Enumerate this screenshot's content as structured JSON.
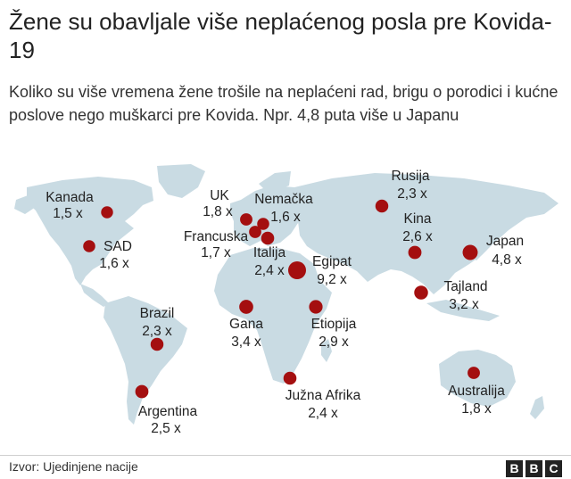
{
  "title": "Žene su obavljale više neplaćenog posla pre Kovida-19",
  "subtitle": "Koliko su više vremena žene trošile na neplaćeni rad, brigu o porodici i kućne poslove nego muškarci pre Kovida. Npr. 4,8 puta više u Japanu",
  "source": "Izvor: Ujedinjene nacije",
  "logo_letters": [
    "B",
    "B",
    "C"
  ],
  "colors": {
    "land": "#c9dbe3",
    "bubble": "#a40f10",
    "text": "#222222"
  },
  "chart_data": {
    "type": "bubble-map",
    "title": "Žene su obavljale više neplaćenog posla pre Kovida-19",
    "unit": "x",
    "points": [
      {
        "country": "Kanada",
        "value": 1.5,
        "label": "1,5 x"
      },
      {
        "country": "SAD",
        "value": 1.6,
        "label": "1,6 x"
      },
      {
        "country": "UK",
        "value": 1.8,
        "label": "1,8 x"
      },
      {
        "country": "Nemačka",
        "value": 1.6,
        "label": "1,6 x"
      },
      {
        "country": "Francuska",
        "value": 1.7,
        "label": "1,7 x"
      },
      {
        "country": "Italija",
        "value": 2.4,
        "label": "2,4 x"
      },
      {
        "country": "Egipat",
        "value": 9.2,
        "label": "9,2 x"
      },
      {
        "country": "Rusija",
        "value": 2.3,
        "label": "2,3 x"
      },
      {
        "country": "Kina",
        "value": 2.6,
        "label": "2,6 x"
      },
      {
        "country": "Japan",
        "value": 4.8,
        "label": "4,8 x"
      },
      {
        "country": "Tajland",
        "value": 3.2,
        "label": "3,2 x"
      },
      {
        "country": "Brazil",
        "value": 2.3,
        "label": "2,3 x"
      },
      {
        "country": "Gana",
        "value": 3.4,
        "label": "3,4 x"
      },
      {
        "country": "Etiopija",
        "value": 2.9,
        "label": "2,9 x"
      },
      {
        "country": "Argentina",
        "value": 2.5,
        "label": "2,5 x"
      },
      {
        "country": "Južna Afrika",
        "value": 2.4,
        "label": "2,4 x"
      },
      {
        "country": "Australija",
        "value": 1.8,
        "label": "1,8 x"
      }
    ]
  }
}
